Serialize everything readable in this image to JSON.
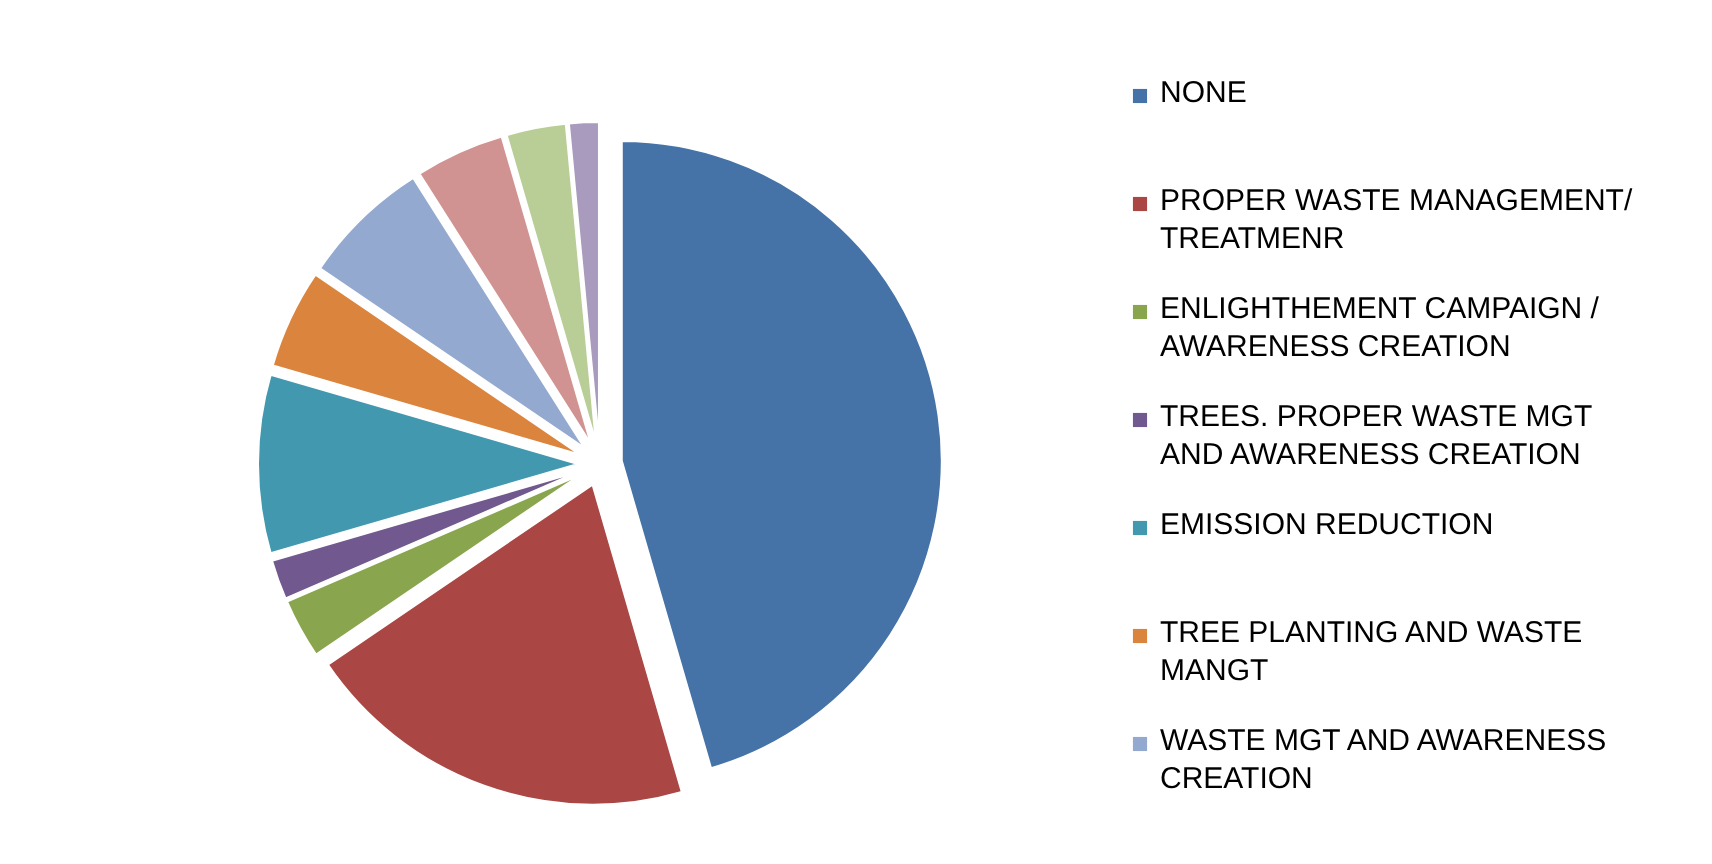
{
  "chart_data": {
    "type": "pie",
    "categories": [
      "NONE",
      "PROPER WASTE MANAGEMENT/  TREATMENR",
      "ENLIGHTHEMENT CAMPAIGN / AWARENESS CREATION",
      "TREES. PROPER WASTE MGT AND AWARENESS CREATION",
      "EMISSION REDUCTION",
      "TREE PLANTING AND WASTE MANGT",
      "WASTE MGT AND AWARENESS CREATION",
      null,
      null,
      null
    ],
    "values": [
      45.5,
      20,
      3,
      2,
      9,
      5,
      6.5,
      4.5,
      3,
      1.5
    ],
    "colors": [
      "#4572a7",
      "#aa4643",
      "#89a54e",
      "#71588f",
      "#4198af",
      "#db843d",
      "#93a9cf",
      "#d19392",
      "#b9cd96",
      "#a99bbd"
    ],
    "legend": "right"
  }
}
